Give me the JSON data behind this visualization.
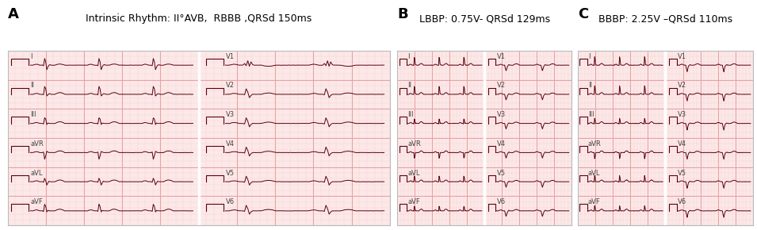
{
  "panel_A_label": "A",
  "panel_B_label": "B",
  "panel_C_label": "C",
  "panel_A_title": "Intrinsic Rhythm: II°AVB,  RBBB ,QRSd 150ms",
  "panel_B_title": "LBBP: 0.75V- QRSd 129ms",
  "panel_C_title": "BBBP: 2.25V –QRSd 110ms",
  "bg_color": "#ffffff",
  "ecg_bg_color": "#fce8e8",
  "grid_major_color": "#e8a0a0",
  "grid_minor_color": "#f5d0d0",
  "ecg_line_color": "#5a0010",
  "label_color": "#000000",
  "label_text_color": "#444444",
  "lead_labels_left": [
    "I",
    "II",
    "III",
    "aVR",
    "aVL",
    "aVF"
  ],
  "lead_labels_right": [
    "V1",
    "V2",
    "V3",
    "V4",
    "V5",
    "V6"
  ],
  "title_fontsize": 9,
  "label_fontsize": 6,
  "panel_label_fontsize": 13,
  "panel_label_fontweight": "bold",
  "divider_color": "#ffffff",
  "spine_color": "#bbbbbb"
}
